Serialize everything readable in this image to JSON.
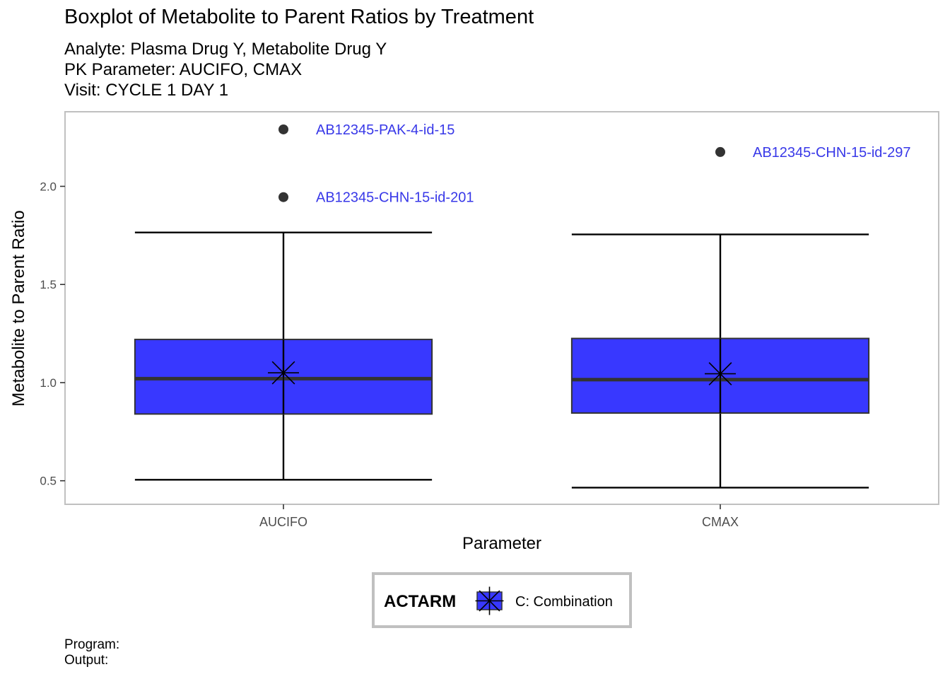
{
  "header": {
    "title": "Boxplot of Metabolite to Parent Ratios by Treatment",
    "subtitle_lines": [
      "Analyte: Plasma Drug Y, Metabolite Drug Y",
      "PK Parameter: AUCIFO, CMAX",
      "Visit: CYCLE 1 DAY 1"
    ]
  },
  "footer": {
    "program_label": "Program:",
    "output_label": "Output:"
  },
  "colors": {
    "box_fill": "#3838ff",
    "outlier_label": "#3838e8",
    "panel_border": "#c0c0c0"
  },
  "chart_data": {
    "type": "boxplot",
    "xlabel": "Parameter",
    "ylabel": "Metabolite to Parent Ratio",
    "ylim": [
      0.38,
      2.38
    ],
    "yticks": [
      0.5,
      1.0,
      1.5,
      2.0
    ],
    "ytick_labels": [
      "0.5",
      "1.0",
      "1.5",
      "2.0"
    ],
    "grid": false,
    "legend": {
      "title": "ACTARM",
      "position": "bottom",
      "entries": [
        {
          "label": "C: Combination",
          "color": "#3838ff",
          "marker": "asterisk"
        }
      ]
    },
    "categories": [
      "AUCIFO",
      "CMAX"
    ],
    "boxes": [
      {
        "category": "AUCIFO",
        "whisker_low": 0.505,
        "q1": 0.84,
        "median": 1.02,
        "q3": 1.22,
        "whisker_high": 1.765,
        "mean": 1.05,
        "outliers": [
          {
            "value": 2.29,
            "label": "AB12345-PAK-4-id-15"
          },
          {
            "value": 1.945,
            "label": "AB12345-CHN-15-id-201"
          }
        ]
      },
      {
        "category": "CMAX",
        "whisker_low": 0.465,
        "q1": 0.845,
        "median": 1.015,
        "q3": 1.225,
        "whisker_high": 1.755,
        "mean": 1.045,
        "outliers": [
          {
            "value": 2.175,
            "label": "AB12345-CHN-15-id-297"
          }
        ]
      }
    ]
  }
}
